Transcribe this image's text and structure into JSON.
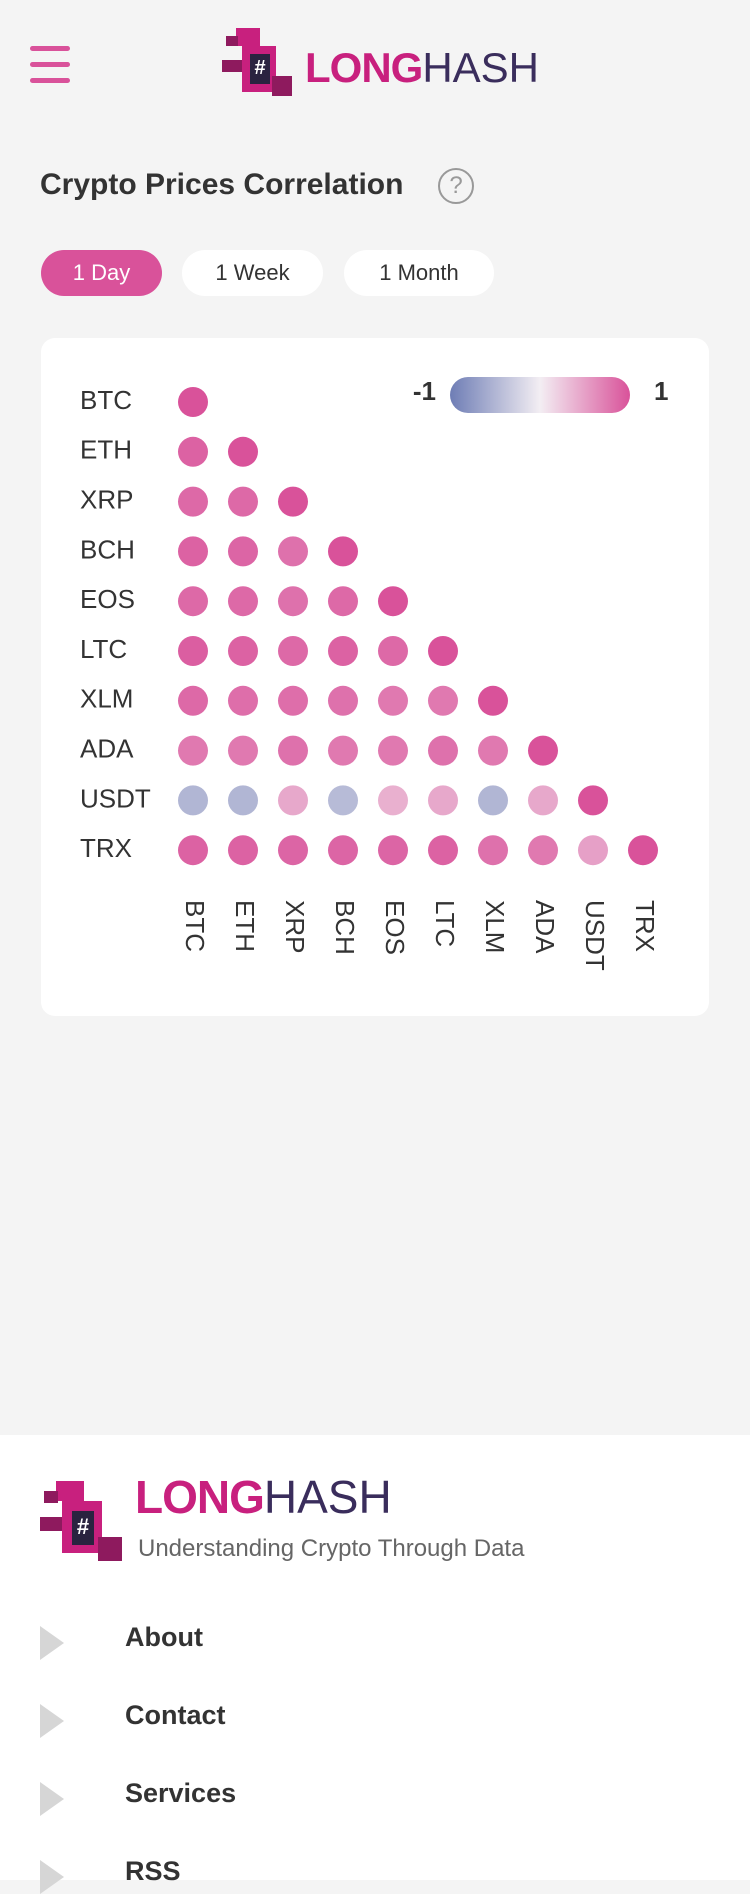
{
  "header": {
    "logo_bold": "LONG",
    "logo_light": "HASH"
  },
  "page_title": "Crypto Prices Correlation",
  "help": "?",
  "tabs": [
    "1 Day",
    "1 Week",
    "1 Month"
  ],
  "chart_data": {
    "type": "heatmap",
    "categories": [
      "BTC",
      "ETH",
      "XRP",
      "BCH",
      "EOS",
      "LTC",
      "XLM",
      "ADA",
      "USDT",
      "TRX"
    ],
    "values": [
      [
        1,
        null,
        null,
        null,
        null,
        null,
        null,
        null,
        null,
        null
      ],
      [
        0.9,
        1,
        null,
        null,
        null,
        null,
        null,
        null,
        null,
        null
      ],
      [
        0.85,
        0.85,
        1,
        null,
        null,
        null,
        null,
        null,
        null,
        null
      ],
      [
        0.9,
        0.88,
        0.8,
        1,
        null,
        null,
        null,
        null,
        null,
        null
      ],
      [
        0.85,
        0.85,
        0.8,
        0.85,
        1,
        null,
        null,
        null,
        null,
        null
      ],
      [
        0.92,
        0.9,
        0.85,
        0.9,
        0.85,
        1,
        null,
        null,
        null,
        null
      ],
      [
        0.85,
        0.82,
        0.82,
        0.8,
        0.75,
        0.75,
        1,
        null,
        null,
        null
      ],
      [
        0.75,
        0.75,
        0.8,
        0.75,
        0.75,
        0.8,
        0.75,
        1,
        null,
        null
      ],
      [
        -0.5,
        -0.5,
        0.45,
        -0.45,
        0.4,
        0.45,
        -0.5,
        0.45,
        1,
        null
      ],
      [
        0.9,
        0.9,
        0.88,
        0.88,
        0.88,
        0.9,
        0.8,
        0.75,
        0.5,
        1
      ]
    ],
    "clim": [
      -1,
      1
    ],
    "cticks": [
      -1,
      1
    ],
    "colormap": [
      "#6e7db5",
      "#f3eef3",
      "#d9529a"
    ]
  },
  "footer": {
    "logo_bold": "LONG",
    "logo_light": "HASH",
    "tagline": "Understanding Crypto Through Data",
    "links": [
      "About",
      "Contact",
      "Services",
      "RSS"
    ]
  }
}
